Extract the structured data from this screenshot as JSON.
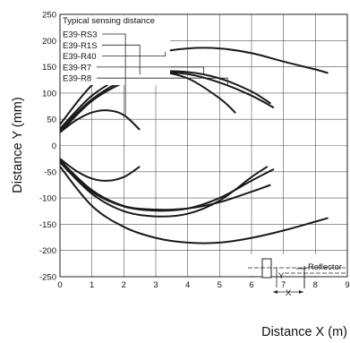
{
  "chart_data": {
    "type": "line",
    "title": "",
    "xlabel": "Distance X (m)",
    "ylabel": "Distance Y (mm)",
    "xlim": [
      0,
      9
    ],
    "ylim": [
      -250,
      250
    ],
    "x_ticks": [
      "0",
      "1",
      "2",
      "3",
      "4",
      "5",
      "6",
      "7",
      "8",
      "9"
    ],
    "y_ticks": [
      "250",
      "200",
      "150",
      "100",
      "50",
      "0",
      "-50",
      "-100",
      "-150",
      "-200",
      "-250"
    ],
    "grid": true,
    "legend_title": "Typical sensing distance",
    "series": [
      {
        "name": "E39-RS3",
        "upper": [
          [
            0,
            25
          ],
          [
            0.5,
            48
          ],
          [
            1,
            63
          ],
          [
            1.5,
            67
          ],
          [
            2,
            58
          ],
          [
            2.5,
            30
          ]
        ],
        "lower": [
          [
            0,
            -25
          ],
          [
            0.5,
            -48
          ],
          [
            1,
            -63
          ],
          [
            1.5,
            -67
          ],
          [
            2,
            -60
          ],
          [
            2.5,
            -40
          ]
        ]
      },
      {
        "name": "E39-R1S",
        "upper": [
          [
            0,
            32
          ],
          [
            1,
            95
          ],
          [
            2,
            130
          ],
          [
            3,
            140
          ],
          [
            4,
            128
          ],
          [
            5,
            90
          ],
          [
            5.5,
            62
          ]
        ],
        "lower": [
          [
            0,
            -32
          ],
          [
            1,
            -92
          ],
          [
            2,
            -125
          ],
          [
            3,
            -135
          ],
          [
            4,
            -130
          ],
          [
            5,
            -105
          ],
          [
            6,
            -60
          ],
          [
            6.5,
            -40
          ]
        ]
      },
      {
        "name": "E39-R40",
        "upper": [
          [
            0,
            40
          ],
          [
            1,
            115
          ],
          [
            2,
            155
          ],
          [
            3,
            176
          ],
          [
            4,
            185
          ],
          [
            5,
            185
          ],
          [
            6,
            176
          ],
          [
            7,
            160
          ],
          [
            8,
            145
          ],
          [
            8.4,
            138
          ]
        ],
        "lower": [
          [
            0,
            -40
          ],
          [
            1,
            -115
          ],
          [
            2,
            -155
          ],
          [
            3,
            -176
          ],
          [
            4,
            -185
          ],
          [
            5,
            -185
          ],
          [
            6,
            -176
          ],
          [
            7,
            -162
          ],
          [
            8,
            -145
          ],
          [
            8.4,
            -138
          ]
        ]
      },
      {
        "name": "E39-R7",
        "upper": [
          [
            0,
            25
          ],
          [
            1,
            85
          ],
          [
            2,
            120
          ],
          [
            3,
            140
          ],
          [
            4,
            140
          ],
          [
            5,
            128
          ],
          [
            6,
            103
          ],
          [
            6.6,
            80
          ]
        ],
        "lower": [
          [
            0,
            -28
          ],
          [
            1,
            -85
          ],
          [
            2,
            -115
          ],
          [
            3,
            -122
          ],
          [
            4,
            -120
          ],
          [
            5,
            -108
          ],
          [
            6,
            -88
          ],
          [
            6.6,
            -75
          ]
        ]
      },
      {
        "name": "E39-R8",
        "upper": [
          [
            0,
            30
          ],
          [
            1,
            88
          ],
          [
            2,
            124
          ],
          [
            3,
            138
          ],
          [
            4,
            136
          ],
          [
            5,
            120
          ],
          [
            6,
            95
          ],
          [
            6.7,
            72
          ]
        ],
        "lower": [
          [
            0,
            -32
          ],
          [
            1,
            -88
          ],
          [
            2,
            -116
          ],
          [
            3,
            -124
          ],
          [
            4,
            -120
          ],
          [
            5,
            -100
          ],
          [
            6,
            -67
          ],
          [
            6.7,
            -45
          ]
        ]
      }
    ],
    "inset": {
      "label": "Reflector",
      "x_label": "X",
      "y_label": "Y"
    }
  }
}
